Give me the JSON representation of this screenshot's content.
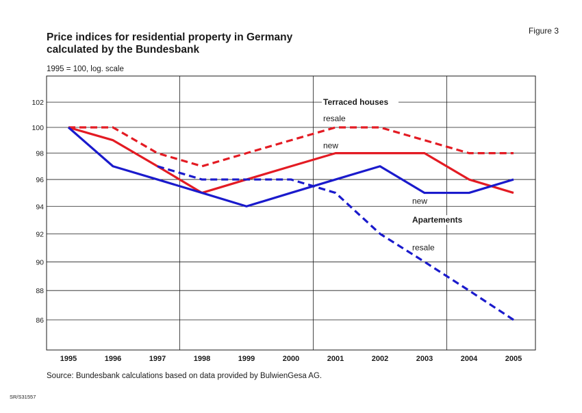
{
  "figure_label": "Figure 3",
  "title_line1": "Price indices for residential property in Germany",
  "title_line2": "calculated by the Bundesbank",
  "source": "Source: Bundesbank calculations based on data provided by BulwienGesa AG.",
  "code": "SR/S31557",
  "colors": {
    "red": "#e31b23",
    "blue": "#1a1acc",
    "grid": "#1a1a1a"
  },
  "chart_data": {
    "type": "line",
    "title": "Price indices for residential property in Germany calculated by the Bundesbank",
    "ylabel": "1995 = 100, log. scale",
    "yscale": "log",
    "ylim": [
      84,
      104
    ],
    "yticks": [
      86,
      88,
      90,
      92,
      94,
      96,
      98,
      100,
      102
    ],
    "x": [
      "1995",
      "1996",
      "1997",
      "1998",
      "1999",
      "2000",
      "2001",
      "2002",
      "2003",
      "2004",
      "2005"
    ],
    "grid": "vertical lines every 3 years, horizontal at each tick",
    "series": [
      {
        "group": "Terraced houses",
        "name": "resale",
        "color": "#e31b23",
        "style": "dashed",
        "values": [
          100,
          100,
          98,
          97,
          98,
          99,
          100,
          100,
          99,
          98,
          98
        ]
      },
      {
        "group": "Terraced houses",
        "name": "new",
        "color": "#e31b23",
        "style": "solid",
        "values": [
          100,
          99,
          97,
          95,
          96,
          97,
          98,
          98,
          98,
          96,
          95
        ]
      },
      {
        "group": "Apartements",
        "name": "new",
        "color": "#1a1acc",
        "style": "solid",
        "values": [
          100,
          97,
          96,
          95,
          94,
          95,
          96,
          97,
          95,
          95,
          96
        ]
      },
      {
        "group": "Apartements",
        "name": "resale",
        "color": "#1a1acc",
        "style": "dashed",
        "values": [
          null,
          null,
          97,
          96,
          96,
          96,
          95,
          92,
          90,
          88,
          86
        ]
      }
    ],
    "annotations": [
      {
        "text": "Terraced houses",
        "bold": true,
        "x": "2001",
        "y": 102
      },
      {
        "text": "resale",
        "bold": false,
        "x": "2001",
        "y": 100.7
      },
      {
        "text": "new",
        "bold": false,
        "x": "2001",
        "y": 98.6
      },
      {
        "text": "new",
        "bold": false,
        "x": "2003",
        "y": 94.4
      },
      {
        "text": "Apartements",
        "bold": true,
        "x": "2003",
        "y": 93.0
      },
      {
        "text": "resale",
        "bold": false,
        "x": "2003",
        "y": 91.0
      }
    ]
  }
}
